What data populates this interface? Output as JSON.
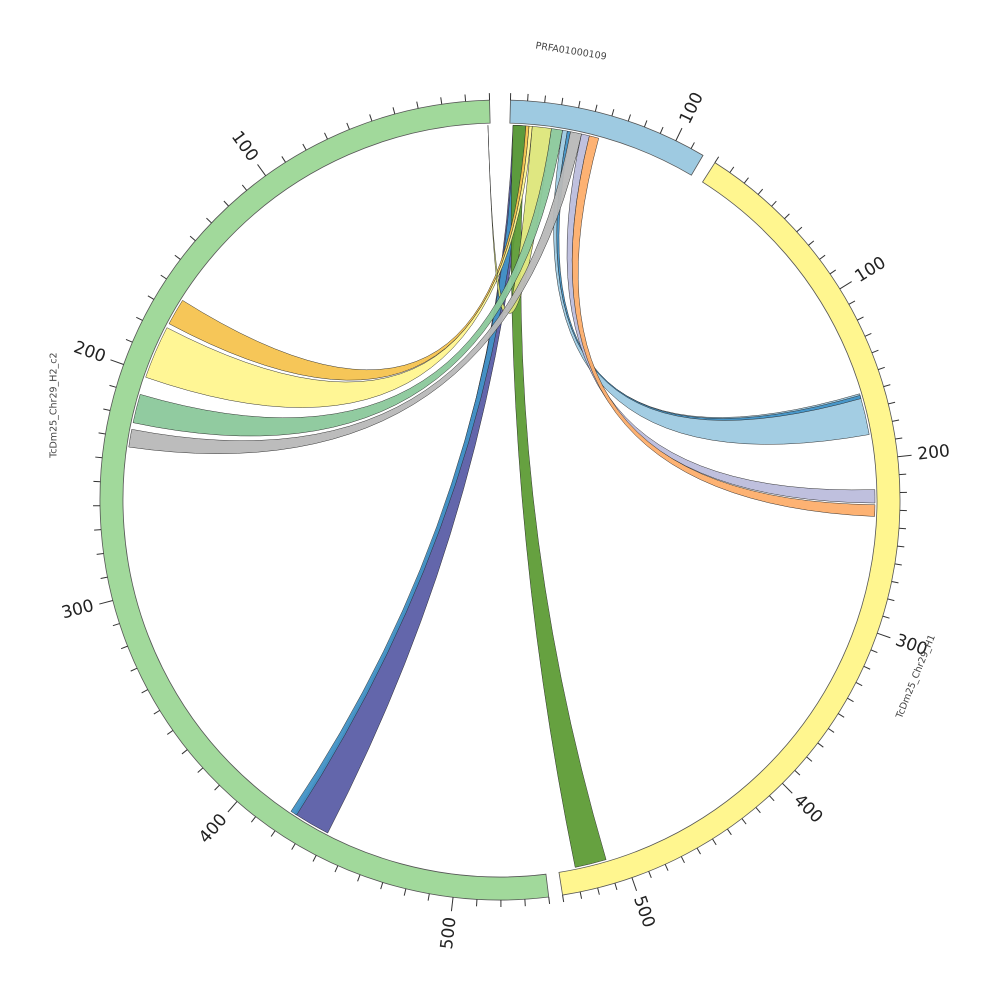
{
  "chart_data": {
    "type": "chord",
    "title": "",
    "segments": [
      {
        "name": "PRFA01000109",
        "length": 118,
        "color": "#9ecae1",
        "major_ticks": [
          "100"
        ]
      },
      {
        "name": "TcDm25_Chr29_H1",
        "length": 540,
        "color": "#fff68f",
        "major_ticks": [
          "100",
          "200",
          "300",
          "400",
          "500"
        ]
      },
      {
        "name": "TcDm25_Chr29_H2_c2",
        "length": 540,
        "color": "#a1d99b",
        "major_ticks": [
          "100",
          "200",
          "300",
          "400",
          "500"
        ]
      }
    ],
    "tick_step": 10,
    "major_tick_step": 100,
    "links": [
      {
        "source": "PRFA01000109",
        "source_range": [
          2,
          10
        ],
        "target": "TcDm25_Chr29_H2_c2",
        "target_range": [
          423,
          440
        ],
        "color": "#5b5ea6"
      },
      {
        "source": "PRFA01000109",
        "source_range": [
          3,
          9
        ],
        "target": "TcDm25_Chr29_H2_c2",
        "target_range": [
          421,
          424
        ],
        "color": "#4292c6"
      },
      {
        "source": "PRFA01000109",
        "source_range": [
          2,
          10
        ],
        "target": "TcDm25_Chr29_H1",
        "target_range": [
          511,
          530
        ],
        "color": "#5e9c36"
      },
      {
        "source": "PRFA01000109",
        "source_range": [
          10,
          12
        ],
        "target": "TcDm25_Chr29_H2_c2",
        "target_range": [
          164,
          176
        ],
        "color": "#f6c34f"
      },
      {
        "source": "PRFA01000109",
        "source_range": [
          12,
          14
        ],
        "target": "TcDm25_Chr29_H2_c2",
        "target_range": [
          178,
          202
        ],
        "color": "#fff68f"
      },
      {
        "source": "PRFA01000109",
        "source_range": [
          14,
          26
        ],
        "target": "TcDm25_Chr29_H2_c2",
        "target_range": [
          1,
          1
        ],
        "color": "#dde67a"
      },
      {
        "source": "PRFA01000109",
        "source_range": [
          26,
          33
        ],
        "target": "TcDm25_Chr29_H2_c2",
        "target_range": [
          210,
          223
        ],
        "color": "#8bc89b"
      },
      {
        "source": "PRFA01000109",
        "source_range": [
          33,
          36
        ],
        "target": "TcDm25_Chr29_H1",
        "target_range": [
          160,
          185
        ],
        "color": "#9ecae1"
      },
      {
        "source": "PRFA01000109",
        "source_range": [
          36,
          38
        ],
        "target": "TcDm25_Chr29_H1",
        "target_range": [
          161,
          163
        ],
        "color": "#4292c6"
      },
      {
        "source": "PRFA01000109",
        "source_range": [
          38,
          45
        ],
        "target": "TcDm25_Chr29_H2_c2",
        "target_range": [
          226,
          234
        ],
        "color": "#b8b8b8"
      },
      {
        "source": "PRFA01000109",
        "source_range": [
          45,
          50
        ],
        "target": "TcDm25_Chr29_H1",
        "target_range": [
          218,
          226
        ],
        "color": "#bcbddc"
      },
      {
        "source": "PRFA01000109",
        "source_range": [
          50,
          56
        ],
        "target": "TcDm25_Chr29_H1",
        "target_range": [
          227,
          234
        ],
        "color": "#fdae6b"
      }
    ]
  }
}
